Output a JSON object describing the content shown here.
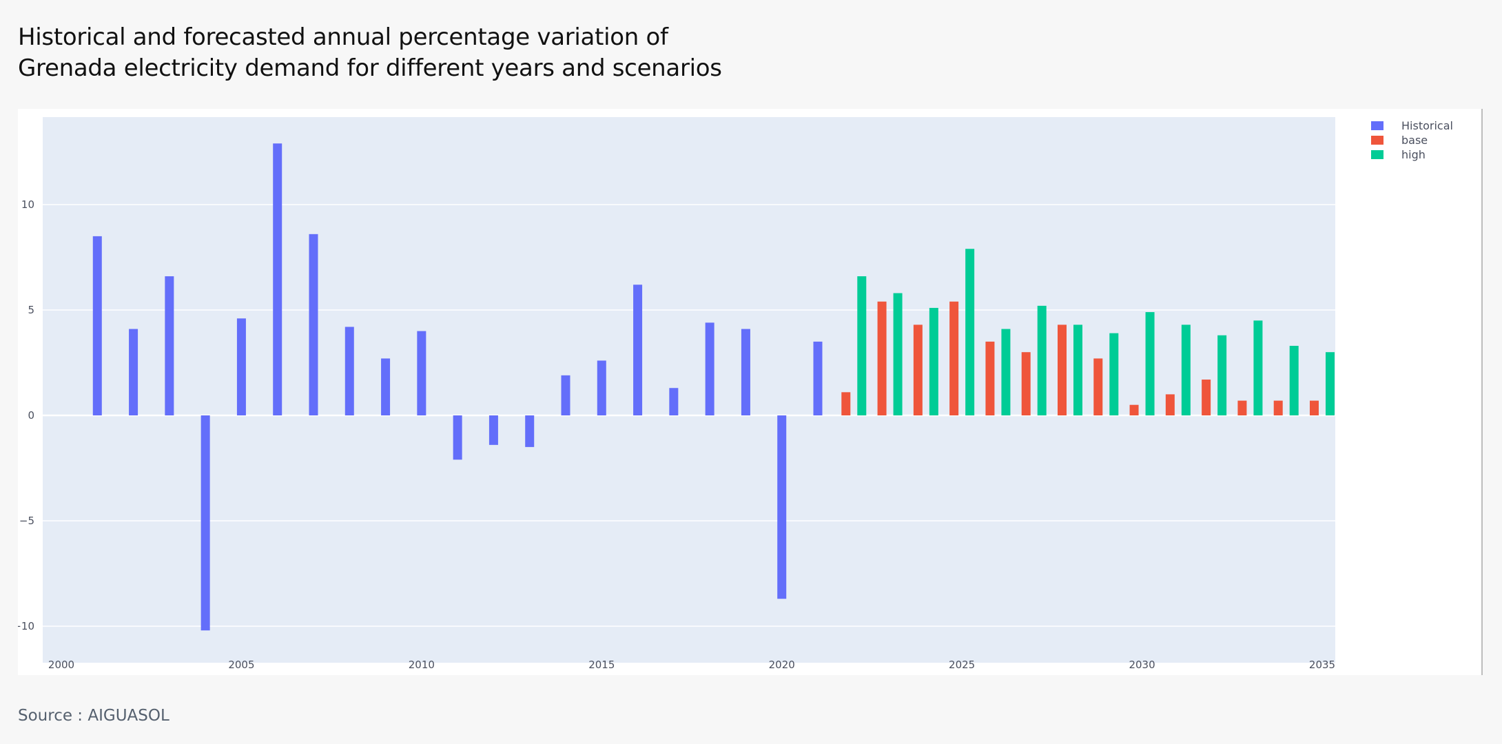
{
  "title": {
    "line1": "Historical and forecasted annual percentage variation of",
    "line2": "Grenada electricity demand for different years and scenarios"
  },
  "source": "Source : AIGUASOL",
  "colors": {
    "historical": "#636efa",
    "base": "#ef553b",
    "high": "#00cc96",
    "plot_bg": "#e5ecf6",
    "grid": "#ffffff"
  },
  "chart_data": {
    "type": "bar",
    "xlim": [
      2000,
      2035
    ],
    "ylim": [
      -11.5,
      14
    ],
    "x_ticks": [
      2000,
      2005,
      2010,
      2015,
      2020,
      2025,
      2030,
      2035
    ],
    "y_ticks": [
      -10,
      -5,
      0,
      5,
      10
    ],
    "grid": true,
    "legend_position": "top-right",
    "series": [
      {
        "name": "Historical",
        "color": "#636efa",
        "x": [
          2001,
          2002,
          2003,
          2004,
          2005,
          2006,
          2007,
          2008,
          2009,
          2010,
          2011,
          2012,
          2013,
          2014,
          2015,
          2016,
          2017,
          2018,
          2019,
          2020,
          2021
        ],
        "values": [
          8.5,
          4.1,
          6.6,
          -10.2,
          4.6,
          12.9,
          8.6,
          4.2,
          2.7,
          4.0,
          -2.1,
          -1.4,
          -1.5,
          1.9,
          2.6,
          6.2,
          1.3,
          4.4,
          4.1,
          -8.7,
          3.5
        ]
      },
      {
        "name": "base",
        "color": "#ef553b",
        "x": [
          2022,
          2023,
          2024,
          2025,
          2026,
          2027,
          2028,
          2029,
          2030,
          2031,
          2032,
          2033,
          2034,
          2035
        ],
        "values": [
          1.1,
          5.4,
          4.3,
          5.4,
          3.5,
          3.0,
          4.3,
          2.7,
          0.5,
          1.0,
          1.7,
          0.7,
          0.7,
          0.7
        ]
      },
      {
        "name": "high",
        "color": "#00cc96",
        "x": [
          2022,
          2023,
          2024,
          2025,
          2026,
          2027,
          2028,
          2029,
          2030,
          2031,
          2032,
          2033,
          2034,
          2035
        ],
        "values": [
          6.6,
          5.8,
          5.1,
          7.9,
          4.1,
          5.2,
          4.3,
          3.9,
          4.9,
          4.3,
          3.8,
          4.5,
          3.3,
          3.0
        ]
      }
    ]
  }
}
